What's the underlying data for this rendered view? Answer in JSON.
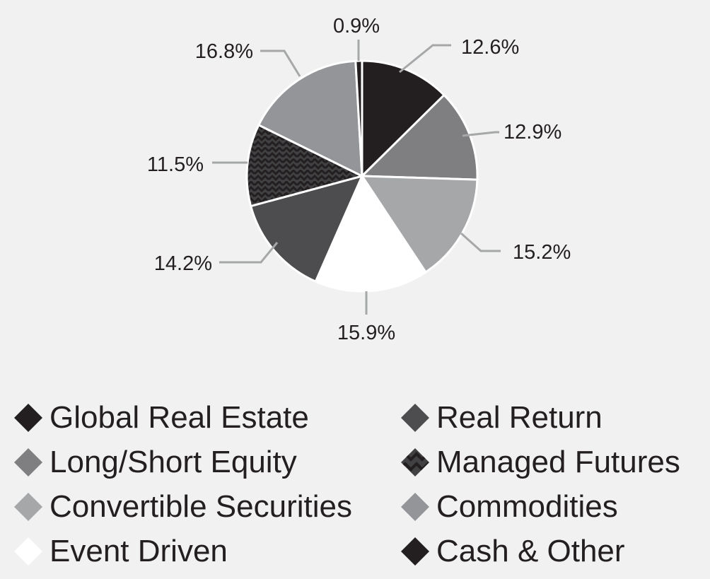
{
  "chart_data": {
    "type": "pie",
    "title": "",
    "slices": [
      {
        "label": "Global Real Estate",
        "value": 12.6,
        "value_label": "12.6%",
        "color": "#231f20",
        "pattern": "solid"
      },
      {
        "label": "Long/Short Equity",
        "value": 12.9,
        "value_label": "12.9%",
        "color": "#7f7f81",
        "pattern": "solid"
      },
      {
        "label": "Convertible Securities",
        "value": 15.2,
        "value_label": "15.2%",
        "color": "#a6a7a9",
        "pattern": "solid"
      },
      {
        "label": "Event Driven",
        "value": 15.9,
        "value_label": "15.9%",
        "color": "#ffffff",
        "pattern": "solid"
      },
      {
        "label": "Real Return",
        "value": 14.2,
        "value_label": "14.2%",
        "color": "#4d4d4f",
        "pattern": "solid"
      },
      {
        "label": "Managed Futures",
        "value": 11.5,
        "value_label": "11.5%",
        "color": "#414042",
        "pattern": "zigzag"
      },
      {
        "label": "Commodities",
        "value": 16.8,
        "value_label": "16.8%",
        "color": "#939598",
        "pattern": "solid"
      },
      {
        "label": "Cash & Other",
        "value": 0.9,
        "value_label": "0.9%",
        "color": "#231f20",
        "pattern": "solid"
      }
    ],
    "start_angle": "12 o'clock",
    "direction": "clockwise",
    "legend_position": "bottom",
    "legend_columns": [
      [
        "Global Real Estate",
        "Long/Short Equity",
        "Convertible Securities",
        "Event Driven"
      ],
      [
        "Real Return",
        "Managed Futures",
        "Commodities",
        "Cash & Other"
      ]
    ]
  },
  "colors": {
    "background": "#f0f1f0",
    "leader_line": "#a6a7a9",
    "text": "#231f20"
  }
}
